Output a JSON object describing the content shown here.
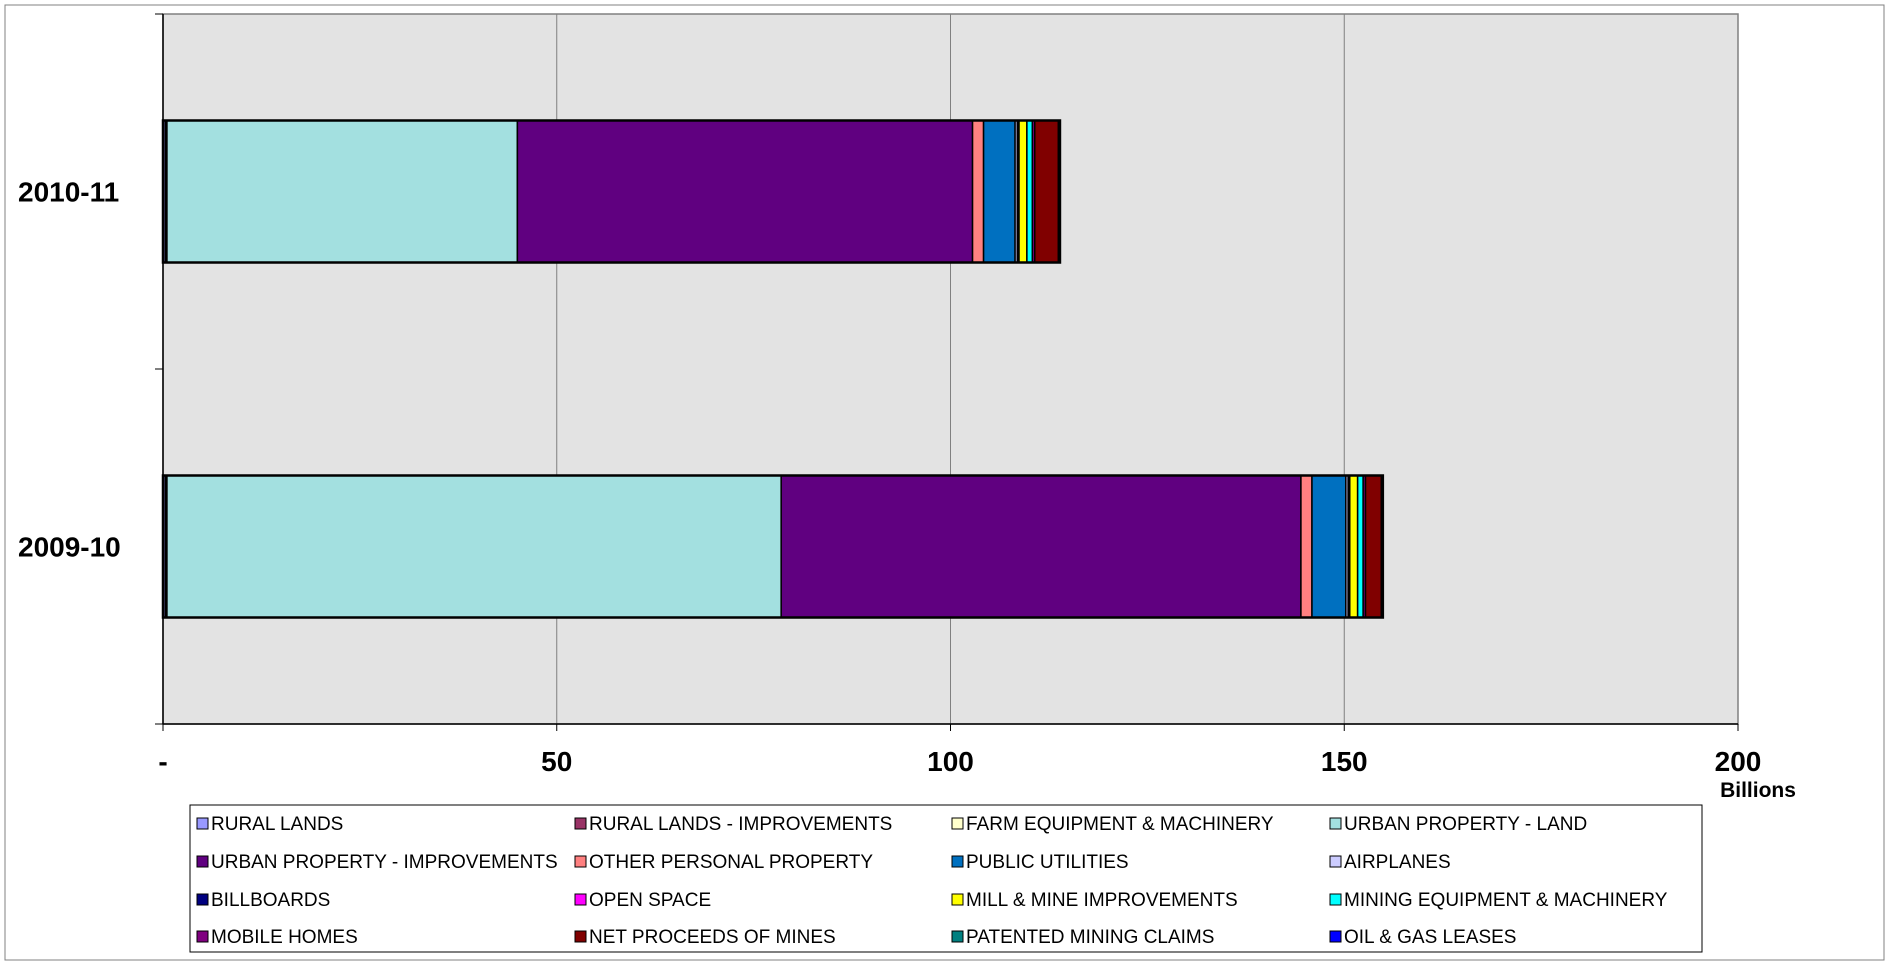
{
  "chart_data": {
    "type": "bar",
    "orientation": "horizontal",
    "stacked": true,
    "categories": [
      "2010-11",
      "2009-10"
    ],
    "series": [
      {
        "name": "RURAL LANDS",
        "color": "#9999ff",
        "values": [
          0.3,
          0.3
        ]
      },
      {
        "name": "RURAL LANDS - IMPROVEMENTS",
        "color": "#993366",
        "values": [
          0.1,
          0.1
        ]
      },
      {
        "name": "FARM EQUIPMENT & MACHINERY",
        "color": "#ffffcc",
        "values": [
          0.1,
          0.1
        ]
      },
      {
        "name": "URBAN PROPERTY - LAND",
        "color": "#a3e0e0",
        "values": [
          44.5,
          78.0
        ]
      },
      {
        "name": "URBAN PROPERTY - IMPROVEMENTS",
        "color": "#600080",
        "values": [
          57.8,
          66.0
        ]
      },
      {
        "name": "OTHER PERSONAL PROPERTY",
        "color": "#ff8080",
        "values": [
          1.4,
          1.4
        ]
      },
      {
        "name": "PUBLIC UTILITIES",
        "color": "#0070c0",
        "values": [
          4.0,
          4.3
        ]
      },
      {
        "name": "AIRPLANES",
        "color": "#ccccff",
        "values": [
          0.3,
          0.3
        ]
      },
      {
        "name": "BILLBOARDS",
        "color": "#000080",
        "values": [
          0.1,
          0.1
        ]
      },
      {
        "name": "OPEN SPACE",
        "color": "#ff00ff",
        "values": [
          0.1,
          0.1
        ]
      },
      {
        "name": "MILL & MINE IMPROVEMENTS",
        "color": "#ffff00",
        "values": [
          1.0,
          1.0
        ]
      },
      {
        "name": "MINING EQUIPMENT & MACHINERY",
        "color": "#00ffff",
        "values": [
          0.7,
          0.7
        ]
      },
      {
        "name": "MOBILE HOMES",
        "color": "#800080",
        "values": [
          0.3,
          0.3
        ]
      },
      {
        "name": "NET PROCEEDS OF MINES",
        "color": "#800000",
        "values": [
          3.0,
          2.0
        ]
      },
      {
        "name": "PATENTED MINING CLAIMS",
        "color": "#008080",
        "values": [
          0.1,
          0.1
        ]
      },
      {
        "name": "OIL & GAS LEASES",
        "color": "#0000ff",
        "values": [
          0.1,
          0.1
        ]
      }
    ],
    "xlim": [
      0,
      200
    ],
    "xticks": [
      0,
      50,
      100,
      150,
      200
    ],
    "xtick_labels": [
      "-",
      "50",
      "100",
      "150",
      "200"
    ],
    "x_unit_label": "Billions",
    "title": "",
    "xlabel": "",
    "ylabel": "",
    "grid": "vertical",
    "legend_position": "bottom",
    "plot_background": "#e3e3e3"
  }
}
